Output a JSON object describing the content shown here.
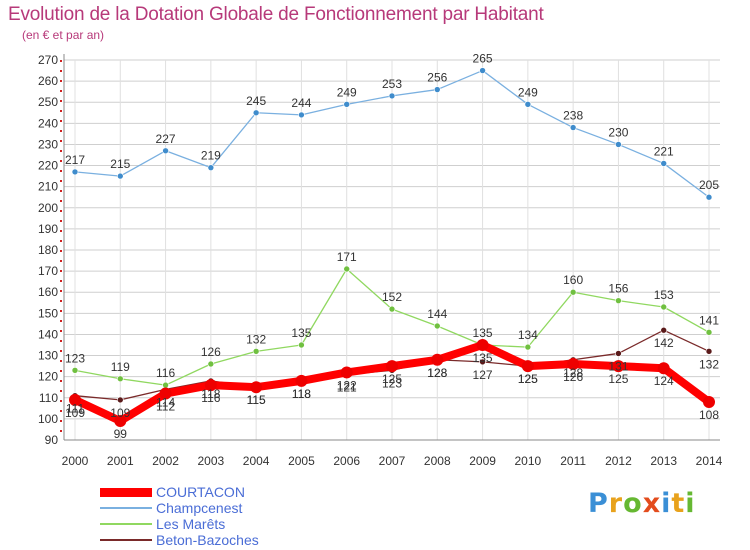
{
  "title": "Evolution de la Dotation Globale de Fonctionnement par Habitant",
  "subtitle": "(en € et par an)",
  "logo_text": "Proxiti",
  "chart_data": {
    "type": "line",
    "title": "Evolution de la Dotation Globale de Fonctionnement par Habitant",
    "subtitle": "(en € et par an)",
    "xlabel": "",
    "ylabel": "",
    "x": [
      2000,
      2001,
      2002,
      2003,
      2004,
      2005,
      2006,
      2007,
      2008,
      2009,
      2010,
      2011,
      2012,
      2013,
      2014
    ],
    "ylim": [
      90,
      270
    ],
    "yticks": [
      90,
      100,
      110,
      120,
      130,
      140,
      150,
      160,
      170,
      180,
      190,
      200,
      210,
      220,
      230,
      240,
      250,
      260,
      270
    ],
    "grid": true,
    "legend_position": "bottom-left",
    "series": [
      {
        "name": "Beton-Bazoches",
        "color": "#7a2a2a",
        "marker_color": "#5a1a1a",
        "width": 1.3,
        "label_offset": 1,
        "values": [
          111,
          109,
          114,
          118,
          115,
          118,
          121,
          123,
          128,
          127,
          125,
          128,
          131,
          142,
          132
        ]
      },
      {
        "name": "Les Marêts",
        "color": "#90d860",
        "marker_color": "#70c040",
        "width": 1.3,
        "label_offset": -1,
        "values": [
          123,
          119,
          116,
          126,
          132,
          135,
          171,
          152,
          144,
          135,
          134,
          160,
          156,
          153,
          141
        ]
      },
      {
        "name": "Champcenest",
        "color": "#7ab0e0",
        "marker_color": "#3f8ccc",
        "width": 1.3,
        "label_offset": -1,
        "values": [
          217,
          215,
          227,
          219,
          245,
          244,
          249,
          253,
          256,
          265,
          249,
          238,
          230,
          221,
          205
        ]
      },
      {
        "name": "COURTACON",
        "color": "#ff0000",
        "marker_color": "#ee0000",
        "width": 8,
        "label_offset": 1,
        "values": [
          109,
          99,
          112,
          116,
          115,
          118,
          122,
          125,
          128,
          135,
          125,
          126,
          125,
          124,
          108
        ]
      }
    ]
  }
}
